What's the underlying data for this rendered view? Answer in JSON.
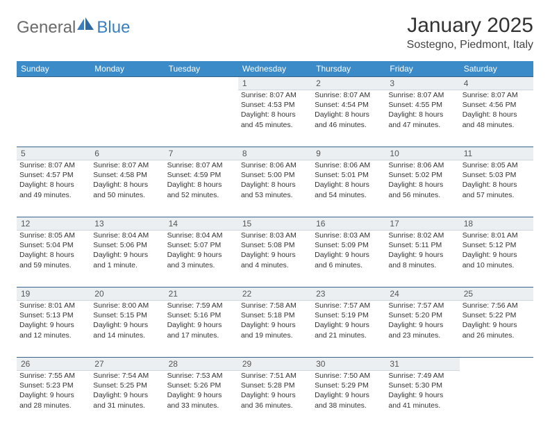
{
  "branding": {
    "logo_text_1": "General",
    "logo_text_2": "Blue",
    "logo_color_gray": "#6a6a6a",
    "logo_color_blue": "#3b7fbf"
  },
  "header": {
    "title": "January 2025",
    "location": "Sostegno, Piedmont, Italy"
  },
  "theme": {
    "header_bg": "#3b8bc9",
    "header_text": "#ffffff",
    "daynum_bg": "#eceff2",
    "daynum_border_top": "#37628a",
    "body_text": "#333333",
    "title_fontsize_pt": 22,
    "location_fontsize_pt": 12,
    "cell_fontsize_pt": 8,
    "columns": 7
  },
  "weekdays": [
    "Sunday",
    "Monday",
    "Tuesday",
    "Wednesday",
    "Thursday",
    "Friday",
    "Saturday"
  ],
  "weeks": [
    [
      null,
      null,
      null,
      {
        "n": "1",
        "sr": "Sunrise: 8:07 AM",
        "ss": "Sunset: 4:53 PM",
        "d1": "Daylight: 8 hours",
        "d2": "and 45 minutes."
      },
      {
        "n": "2",
        "sr": "Sunrise: 8:07 AM",
        "ss": "Sunset: 4:54 PM",
        "d1": "Daylight: 8 hours",
        "d2": "and 46 minutes."
      },
      {
        "n": "3",
        "sr": "Sunrise: 8:07 AM",
        "ss": "Sunset: 4:55 PM",
        "d1": "Daylight: 8 hours",
        "d2": "and 47 minutes."
      },
      {
        "n": "4",
        "sr": "Sunrise: 8:07 AM",
        "ss": "Sunset: 4:56 PM",
        "d1": "Daylight: 8 hours",
        "d2": "and 48 minutes."
      }
    ],
    [
      {
        "n": "5",
        "sr": "Sunrise: 8:07 AM",
        "ss": "Sunset: 4:57 PM",
        "d1": "Daylight: 8 hours",
        "d2": "and 49 minutes."
      },
      {
        "n": "6",
        "sr": "Sunrise: 8:07 AM",
        "ss": "Sunset: 4:58 PM",
        "d1": "Daylight: 8 hours",
        "d2": "and 50 minutes."
      },
      {
        "n": "7",
        "sr": "Sunrise: 8:07 AM",
        "ss": "Sunset: 4:59 PM",
        "d1": "Daylight: 8 hours",
        "d2": "and 52 minutes."
      },
      {
        "n": "8",
        "sr": "Sunrise: 8:06 AM",
        "ss": "Sunset: 5:00 PM",
        "d1": "Daylight: 8 hours",
        "d2": "and 53 minutes."
      },
      {
        "n": "9",
        "sr": "Sunrise: 8:06 AM",
        "ss": "Sunset: 5:01 PM",
        "d1": "Daylight: 8 hours",
        "d2": "and 54 minutes."
      },
      {
        "n": "10",
        "sr": "Sunrise: 8:06 AM",
        "ss": "Sunset: 5:02 PM",
        "d1": "Daylight: 8 hours",
        "d2": "and 56 minutes."
      },
      {
        "n": "11",
        "sr": "Sunrise: 8:05 AM",
        "ss": "Sunset: 5:03 PM",
        "d1": "Daylight: 8 hours",
        "d2": "and 57 minutes."
      }
    ],
    [
      {
        "n": "12",
        "sr": "Sunrise: 8:05 AM",
        "ss": "Sunset: 5:04 PM",
        "d1": "Daylight: 8 hours",
        "d2": "and 59 minutes."
      },
      {
        "n": "13",
        "sr": "Sunrise: 8:04 AM",
        "ss": "Sunset: 5:06 PM",
        "d1": "Daylight: 9 hours",
        "d2": "and 1 minute."
      },
      {
        "n": "14",
        "sr": "Sunrise: 8:04 AM",
        "ss": "Sunset: 5:07 PM",
        "d1": "Daylight: 9 hours",
        "d2": "and 3 minutes."
      },
      {
        "n": "15",
        "sr": "Sunrise: 8:03 AM",
        "ss": "Sunset: 5:08 PM",
        "d1": "Daylight: 9 hours",
        "d2": "and 4 minutes."
      },
      {
        "n": "16",
        "sr": "Sunrise: 8:03 AM",
        "ss": "Sunset: 5:09 PM",
        "d1": "Daylight: 9 hours",
        "d2": "and 6 minutes."
      },
      {
        "n": "17",
        "sr": "Sunrise: 8:02 AM",
        "ss": "Sunset: 5:11 PM",
        "d1": "Daylight: 9 hours",
        "d2": "and 8 minutes."
      },
      {
        "n": "18",
        "sr": "Sunrise: 8:01 AM",
        "ss": "Sunset: 5:12 PM",
        "d1": "Daylight: 9 hours",
        "d2": "and 10 minutes."
      }
    ],
    [
      {
        "n": "19",
        "sr": "Sunrise: 8:01 AM",
        "ss": "Sunset: 5:13 PM",
        "d1": "Daylight: 9 hours",
        "d2": "and 12 minutes."
      },
      {
        "n": "20",
        "sr": "Sunrise: 8:00 AM",
        "ss": "Sunset: 5:15 PM",
        "d1": "Daylight: 9 hours",
        "d2": "and 14 minutes."
      },
      {
        "n": "21",
        "sr": "Sunrise: 7:59 AM",
        "ss": "Sunset: 5:16 PM",
        "d1": "Daylight: 9 hours",
        "d2": "and 17 minutes."
      },
      {
        "n": "22",
        "sr": "Sunrise: 7:58 AM",
        "ss": "Sunset: 5:18 PM",
        "d1": "Daylight: 9 hours",
        "d2": "and 19 minutes."
      },
      {
        "n": "23",
        "sr": "Sunrise: 7:57 AM",
        "ss": "Sunset: 5:19 PM",
        "d1": "Daylight: 9 hours",
        "d2": "and 21 minutes."
      },
      {
        "n": "24",
        "sr": "Sunrise: 7:57 AM",
        "ss": "Sunset: 5:20 PM",
        "d1": "Daylight: 9 hours",
        "d2": "and 23 minutes."
      },
      {
        "n": "25",
        "sr": "Sunrise: 7:56 AM",
        "ss": "Sunset: 5:22 PM",
        "d1": "Daylight: 9 hours",
        "d2": "and 26 minutes."
      }
    ],
    [
      {
        "n": "26",
        "sr": "Sunrise: 7:55 AM",
        "ss": "Sunset: 5:23 PM",
        "d1": "Daylight: 9 hours",
        "d2": "and 28 minutes."
      },
      {
        "n": "27",
        "sr": "Sunrise: 7:54 AM",
        "ss": "Sunset: 5:25 PM",
        "d1": "Daylight: 9 hours",
        "d2": "and 31 minutes."
      },
      {
        "n": "28",
        "sr": "Sunrise: 7:53 AM",
        "ss": "Sunset: 5:26 PM",
        "d1": "Daylight: 9 hours",
        "d2": "and 33 minutes."
      },
      {
        "n": "29",
        "sr": "Sunrise: 7:51 AM",
        "ss": "Sunset: 5:28 PM",
        "d1": "Daylight: 9 hours",
        "d2": "and 36 minutes."
      },
      {
        "n": "30",
        "sr": "Sunrise: 7:50 AM",
        "ss": "Sunset: 5:29 PM",
        "d1": "Daylight: 9 hours",
        "d2": "and 38 minutes."
      },
      {
        "n": "31",
        "sr": "Sunrise: 7:49 AM",
        "ss": "Sunset: 5:30 PM",
        "d1": "Daylight: 9 hours",
        "d2": "and 41 minutes."
      },
      null
    ]
  ]
}
